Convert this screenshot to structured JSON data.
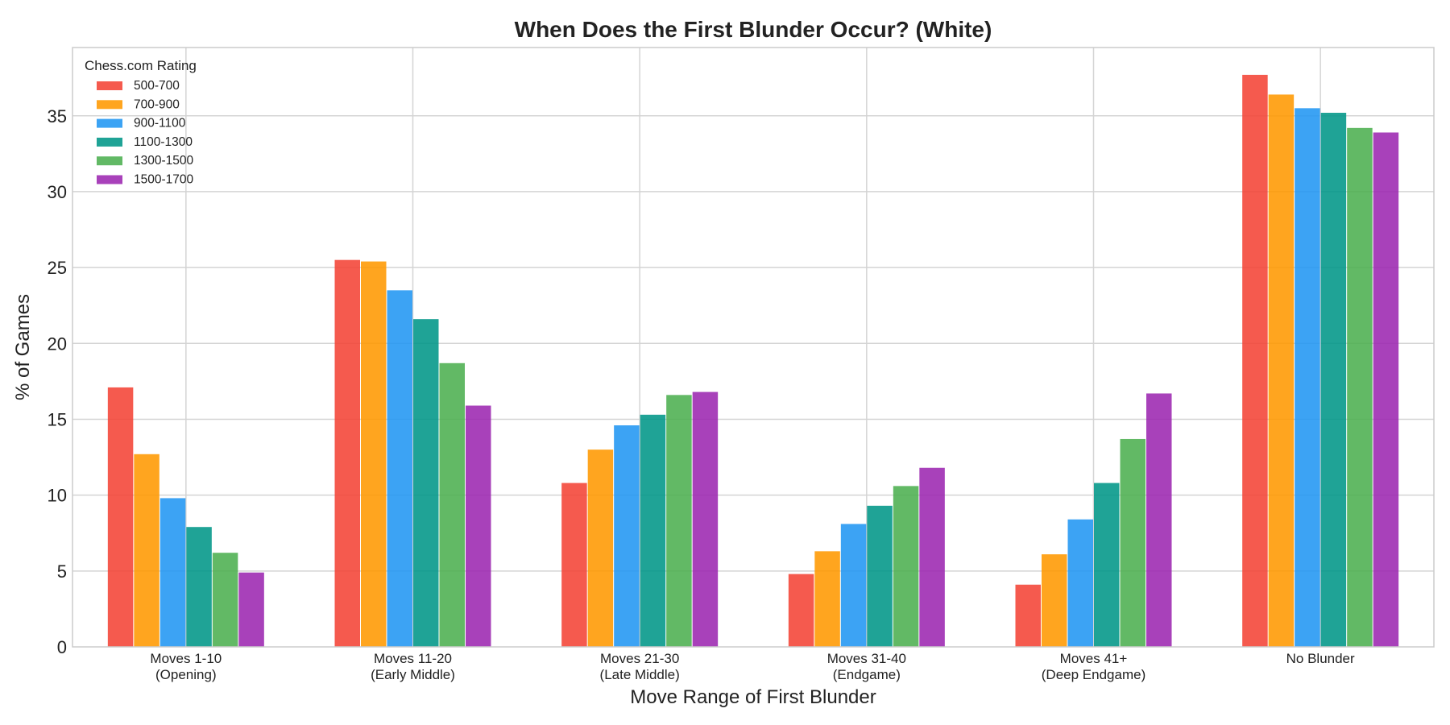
{
  "chart_data": {
    "type": "bar",
    "title": "When Does the First Blunder Occur? (White)",
    "xlabel": "Move Range of First Blunder",
    "ylabel": "% of Games",
    "ylim": [
      0,
      39.5
    ],
    "yticks": [
      0,
      5,
      10,
      15,
      20,
      25,
      30,
      35
    ],
    "grid": true,
    "legend": {
      "title": "Chess.com Rating",
      "placement": "top-left"
    },
    "categories": [
      [
        "Moves 1-10",
        "(Opening)"
      ],
      [
        "Moves 11-20",
        "(Early Middle)"
      ],
      [
        "Moves 21-30",
        "(Late Middle)"
      ],
      [
        "Moves 31-40",
        "(Endgame)"
      ],
      [
        "Moves 41+",
        "(Deep Endgame)"
      ],
      [
        "No Blunder"
      ]
    ],
    "series": [
      {
        "name": "500-700",
        "color": "#f44336",
        "values": [
          17.1,
          25.5,
          10.8,
          4.8,
          4.1,
          37.7
        ]
      },
      {
        "name": "700-900",
        "color": "#ff9800",
        "values": [
          12.7,
          25.4,
          13.0,
          6.3,
          6.1,
          36.4
        ]
      },
      {
        "name": "900-1100",
        "color": "#2196f3",
        "values": [
          9.8,
          23.5,
          14.6,
          8.1,
          8.4,
          35.5
        ]
      },
      {
        "name": "1100-1300",
        "color": "#009688",
        "values": [
          7.9,
          21.6,
          15.3,
          9.3,
          10.8,
          35.2
        ]
      },
      {
        "name": "1300-1500",
        "color": "#4caf50",
        "values": [
          6.2,
          18.7,
          16.6,
          10.6,
          13.7,
          34.2
        ]
      },
      {
        "name": "1500-1700",
        "color": "#9c27b0",
        "values": [
          4.9,
          15.9,
          16.8,
          11.8,
          16.7,
          33.9
        ]
      }
    ]
  }
}
